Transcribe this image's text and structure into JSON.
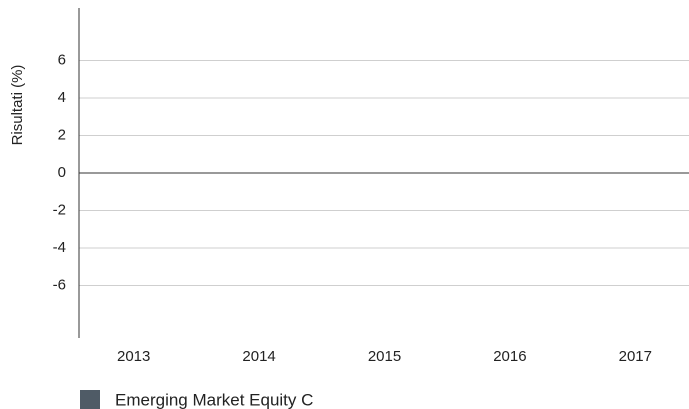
{
  "chart_data": {
    "type": "bar",
    "y_label": "Risultati (%)",
    "categories": [
      "2013",
      "2014",
      "2015",
      "2016",
      "2017"
    ],
    "series": [
      {
        "name": "Emerging Market Equity C",
        "color": "#4f5b66",
        "values": [
          null,
          null,
          null,
          null,
          null
        ]
      }
    ],
    "ylim": [
      -8.8,
      8.8
    ],
    "yticks": [
      -6,
      -4,
      -2,
      0,
      2,
      4,
      6
    ],
    "grid": true
  }
}
